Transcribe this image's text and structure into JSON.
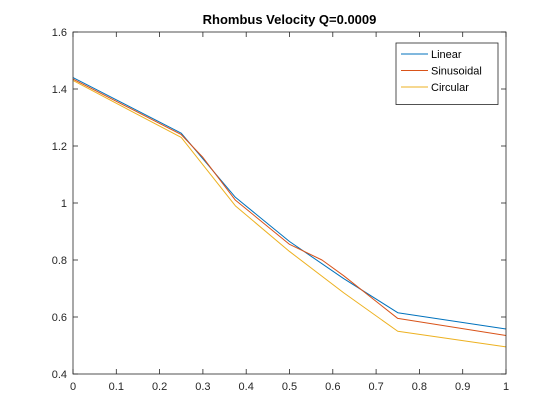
{
  "chart_data": {
    "type": "line",
    "title": "Rhombus Velocity Q=0.0009",
    "xlabel": "",
    "ylabel": "",
    "xlim": [
      0,
      1
    ],
    "ylim": [
      0.4,
      1.6
    ],
    "xticks": [
      0,
      0.1,
      0.2,
      0.3,
      0.4,
      0.5,
      0.6,
      0.7,
      0.8,
      0.9,
      1
    ],
    "yticks": [
      0.4,
      0.6,
      0.8,
      1,
      1.2,
      1.4,
      1.6
    ],
    "xtick_labels": [
      "0",
      "0.1",
      "0.2",
      "0.3",
      "0.4",
      "0.5",
      "0.6",
      "0.7",
      "0.8",
      "0.9",
      "1"
    ],
    "ytick_labels": [
      "0.4",
      "0.6",
      "0.8",
      "1",
      "1.2",
      "1.4",
      "1.6"
    ],
    "grid": false,
    "legend_position": "top-right",
    "series": [
      {
        "name": "Linear",
        "color": "#0072BD",
        "x": [
          0,
          0.25,
          0.375,
          0.5,
          0.625,
          0.75,
          1
        ],
        "y": [
          1.44,
          1.245,
          1.02,
          0.865,
          0.735,
          0.615,
          0.558
        ]
      },
      {
        "name": "Sinusoidal",
        "color": "#D95319",
        "x": [
          0,
          0.25,
          0.3,
          0.375,
          0.5,
          0.575,
          0.625,
          0.7,
          0.75,
          1
        ],
        "y": [
          1.435,
          1.24,
          1.16,
          1.01,
          0.855,
          0.8,
          0.745,
          0.655,
          0.595,
          0.535
        ]
      },
      {
        "name": "Circular",
        "color": "#EDB120",
        "x": [
          0,
          0.25,
          0.375,
          0.5,
          0.625,
          0.75,
          1
        ],
        "y": [
          1.43,
          1.23,
          0.99,
          0.83,
          0.685,
          0.55,
          0.495
        ]
      }
    ]
  }
}
